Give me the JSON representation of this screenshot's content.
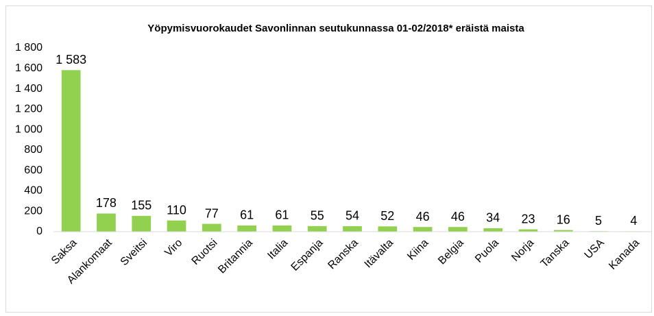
{
  "chart_data": {
    "type": "bar",
    "title": "Yöpymisvuorokaudet Savonlinnan seutukunnassa 01-02/2018* eräistä maista",
    "categories": [
      "Saksa",
      "Alankomaat",
      "Sveitsi",
      "Viro",
      "Ruotsi",
      "Britannia",
      "Italia",
      "Espanja",
      "Ranska",
      "Itävalta",
      "Kiina",
      "Belgia",
      "Puola",
      "Norja",
      "Tanska",
      "USA",
      "Kanada"
    ],
    "values": [
      1583,
      178,
      155,
      110,
      77,
      61,
      61,
      55,
      54,
      52,
      46,
      46,
      34,
      23,
      16,
      5,
      4
    ],
    "value_labels": [
      "1 583",
      "178",
      "155",
      "110",
      "77",
      "61",
      "61",
      "55",
      "54",
      "52",
      "46",
      "46",
      "34",
      "23",
      "16",
      "5",
      "4"
    ],
    "color": "#92d050",
    "ylim": [
      0,
      1800
    ],
    "yticks": [
      0,
      200,
      400,
      600,
      800,
      {
        "value": 1000,
        "label": "1 000"
      },
      {
        "value": 1200,
        "label": "1 200"
      },
      {
        "value": 1400,
        "label": "1 400"
      },
      {
        "value": 1600,
        "label": "1 600"
      },
      {
        "value": 1800,
        "label": "1 800"
      }
    ],
    "grid": false
  }
}
